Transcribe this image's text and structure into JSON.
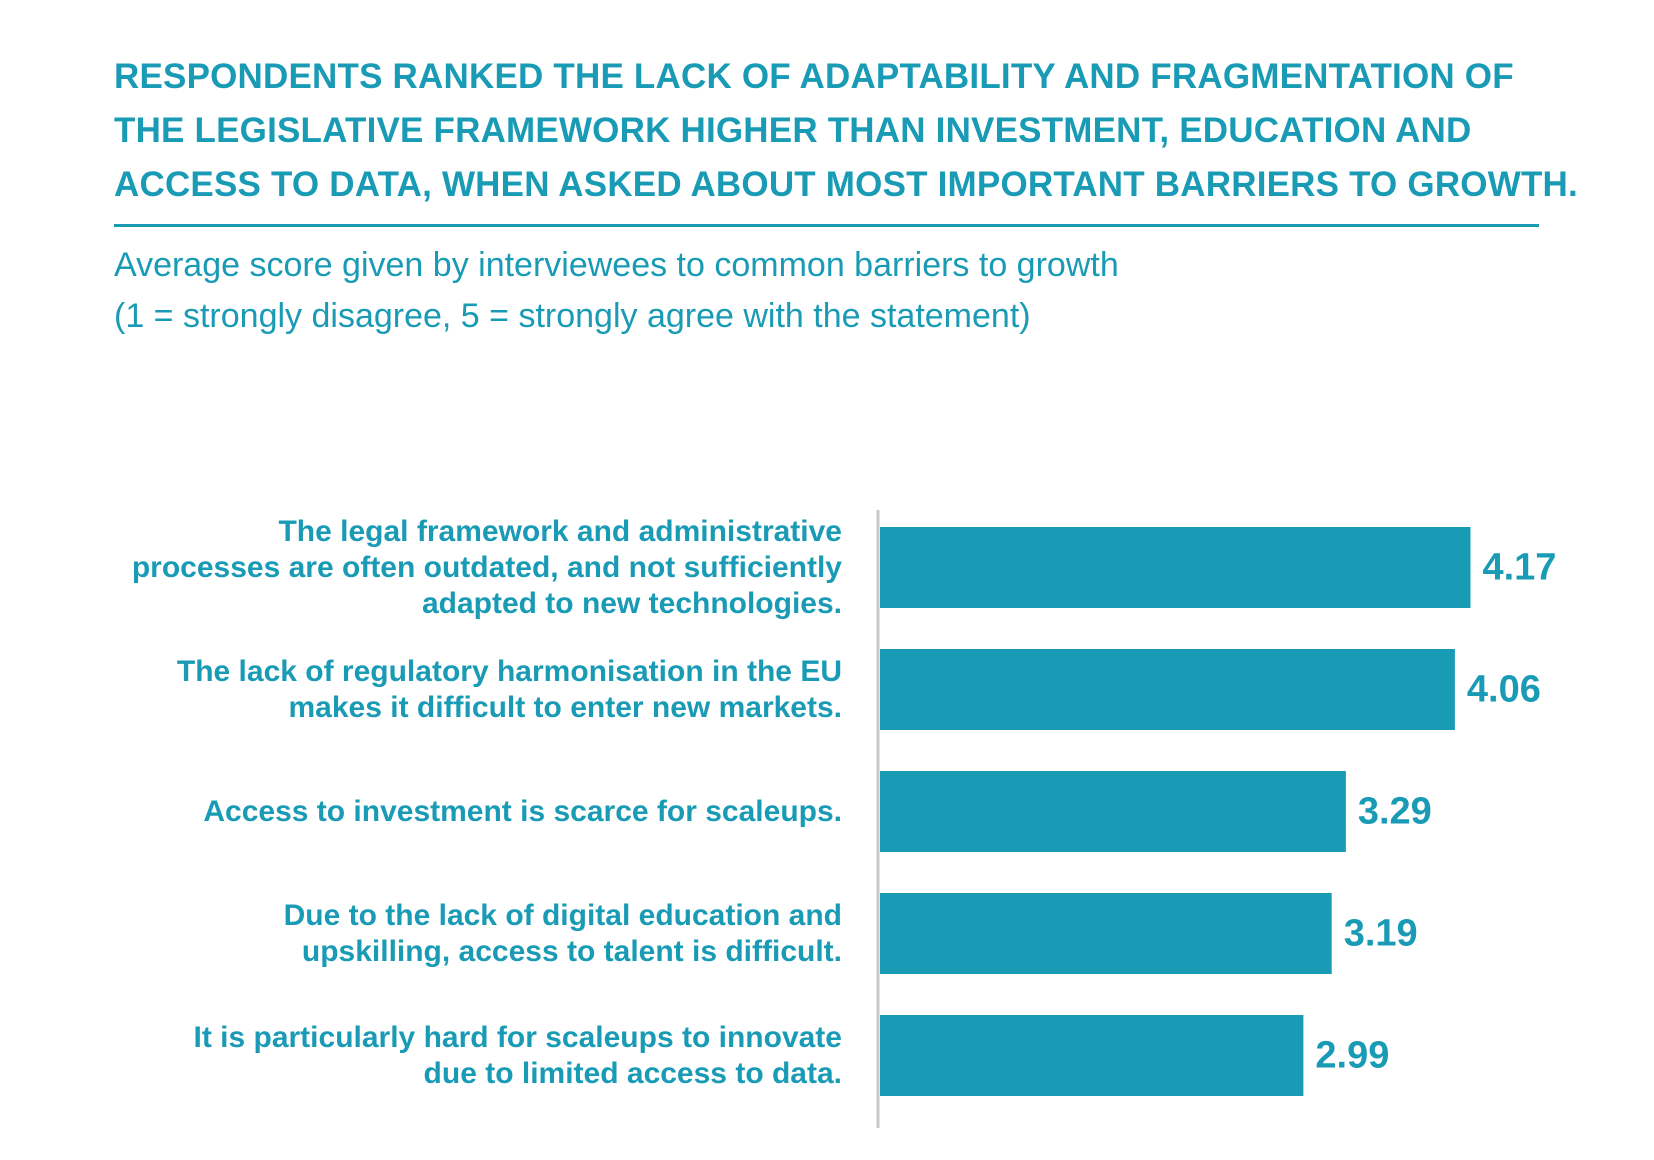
{
  "header": {
    "title_lines": [
      "RESPONDENTS RANKED THE LACK OF ADAPTABILITY AND FRAGMENTATION OF",
      "THE LEGISLATIVE FRAMEWORK HIGHER THAN INVESTMENT, EDUCATION AND",
      "ACCESS TO DATA, WHEN ASKED ABOUT MOST IMPORTANT BARRIERS TO GROWTH."
    ],
    "subtitle_lines": [
      "Average score given by interviewees to common barriers to growth",
      "(1 = strongly disagree, 5 = strongly agree with the statement)"
    ]
  },
  "colors": {
    "accent": "#1a9bb5",
    "bar": "#1a9bb5",
    "axis": "#c8c8c8"
  },
  "chart_data": {
    "type": "bar",
    "orientation": "horizontal",
    "title": "Average score given by interviewees to common barriers to growth",
    "xlabel": "",
    "ylabel": "",
    "xlim": [
      0,
      5
    ],
    "grid": false,
    "legend": "none",
    "categories": [
      [
        "The legal framework and administrative",
        "processes are often outdated, and not sufficiently",
        "adapted to new technologies."
      ],
      [
        "The lack of regulatory harmonisation in the EU",
        "makes it difficult to enter new markets."
      ],
      [
        "Access to investment is scarce for scaleups."
      ],
      [
        "Due to the lack of digital education and",
        "upskilling, access to talent is difficult."
      ],
      [
        "It is particularly hard for scaleups to innovate",
        "due to limited access to data."
      ]
    ],
    "values": [
      4.17,
      4.06,
      3.29,
      3.19,
      2.99
    ],
    "value_labels": [
      "4.17",
      "4.06",
      "3.29",
      "3.19",
      "2.99"
    ]
  }
}
